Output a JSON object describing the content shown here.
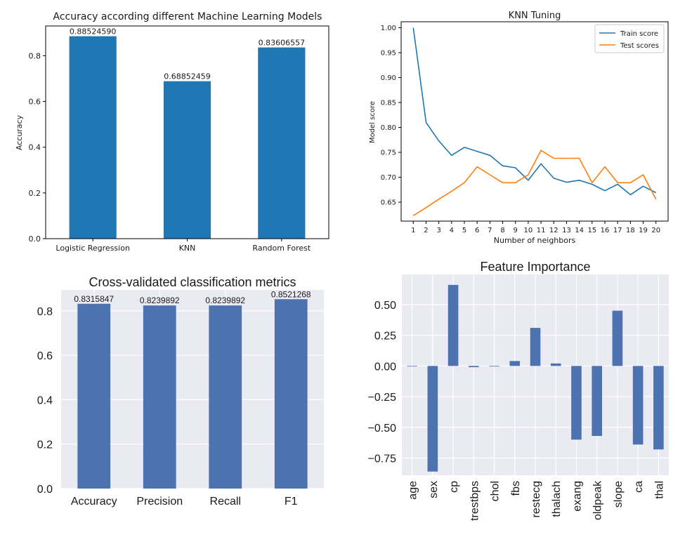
{
  "chart_data": [
    {
      "type": "bar",
      "title": "Accuracy according different Machine Learning Models",
      "xlabel": "",
      "ylabel": "Accuracy",
      "categories": [
        "Logistic Regression",
        "KNN",
        "Random Forest"
      ],
      "values": [
        0.8852459,
        0.68852459,
        0.83606557
      ],
      "value_labels": [
        "0.88524590",
        "0.68852459",
        "0.83606557"
      ],
      "ylim": [
        0,
        0.93
      ],
      "yticks": [
        0.0,
        0.2,
        0.4,
        0.6,
        0.8
      ],
      "ytick_labels": [
        "0.0",
        "0.2",
        "0.4",
        "0.6",
        "0.8"
      ],
      "color": "#1f77b4",
      "grid": false
    },
    {
      "type": "line",
      "title": "KNN Tuning",
      "xlabel": "Number of neighbors",
      "ylabel": "Model score",
      "x": [
        1,
        2,
        3,
        4,
        5,
        6,
        7,
        8,
        9,
        10,
        11,
        12,
        13,
        14,
        15,
        16,
        17,
        18,
        19,
        20
      ],
      "xtick_labels": [
        "1",
        "2",
        "3",
        "4",
        "5",
        "6",
        "7",
        "8",
        "9",
        "10",
        "11",
        "12",
        "13",
        "14",
        "15",
        "16",
        "17",
        "18",
        "19",
        "20"
      ],
      "series": [
        {
          "name": "Train score",
          "color": "#1f77b4",
          "values": [
            1.0,
            0.81,
            0.773,
            0.744,
            0.76,
            0.752,
            0.744,
            0.723,
            0.719,
            0.694,
            0.727,
            0.698,
            0.69,
            0.694,
            0.686,
            0.673,
            0.686,
            0.665,
            0.682,
            0.669
          ]
        },
        {
          "name": "Test scores",
          "color": "#ff7f0e",
          "values": [
            0.623,
            0.639,
            0.656,
            0.672,
            0.689,
            0.721,
            0.705,
            0.689,
            0.689,
            0.705,
            0.754,
            0.738,
            0.738,
            0.738,
            0.689,
            0.721,
            0.689,
            0.689,
            0.705,
            0.656
          ]
        }
      ],
      "ylim": [
        0.612,
        1.012
      ],
      "yticks": [
        0.65,
        0.7,
        0.75,
        0.8,
        0.85,
        0.9,
        0.95,
        1.0
      ],
      "ytick_labels": [
        "0.65",
        "0.70",
        "0.75",
        "0.80",
        "0.85",
        "0.90",
        "0.95",
        "1.00"
      ],
      "legend": "top-right",
      "grid": false
    },
    {
      "type": "bar",
      "title": "Cross-validated classification metrics",
      "xlabel": "",
      "ylabel": "",
      "categories": [
        "Accuracy",
        "Precision",
        "Recall",
        "F1"
      ],
      "values": [
        0.8315847,
        0.8239892,
        0.8239892,
        0.8521268
      ],
      "value_labels": [
        "0.8315847",
        "0.8239892",
        "0.8239892",
        "0.8521268"
      ],
      "ylim": [
        0,
        0.894
      ],
      "yticks": [
        0.0,
        0.2,
        0.4,
        0.6,
        0.8
      ],
      "ytick_labels": [
        "0.0",
        "0.2",
        "0.4",
        "0.6",
        "0.8"
      ],
      "color": "#4c72b0",
      "background": "#eaeaf2",
      "grid": true
    },
    {
      "type": "bar",
      "title": "Feature Importance",
      "xlabel": "",
      "ylabel": "",
      "categories": [
        "age",
        "sex",
        "cp",
        "trestbps",
        "chol",
        "fbs",
        "restecg",
        "thalach",
        "exang",
        "oldpeak",
        "slope",
        "ca",
        "thal"
      ],
      "values": [
        0.0,
        -0.86,
        0.66,
        -0.01,
        0.0,
        0.04,
        0.31,
        0.02,
        -0.6,
        -0.57,
        0.45,
        -0.64,
        -0.68
      ],
      "ylim": [
        -0.89,
        0.745
      ],
      "yticks": [
        -0.75,
        -0.5,
        -0.25,
        0.0,
        0.25,
        0.5
      ],
      "ytick_labels": [
        "−0.75",
        "−0.50",
        "−0.25",
        "0.00",
        "0.25",
        "0.50"
      ],
      "color": "#4c72b0",
      "background": "#eaeaf2",
      "grid": true
    }
  ]
}
